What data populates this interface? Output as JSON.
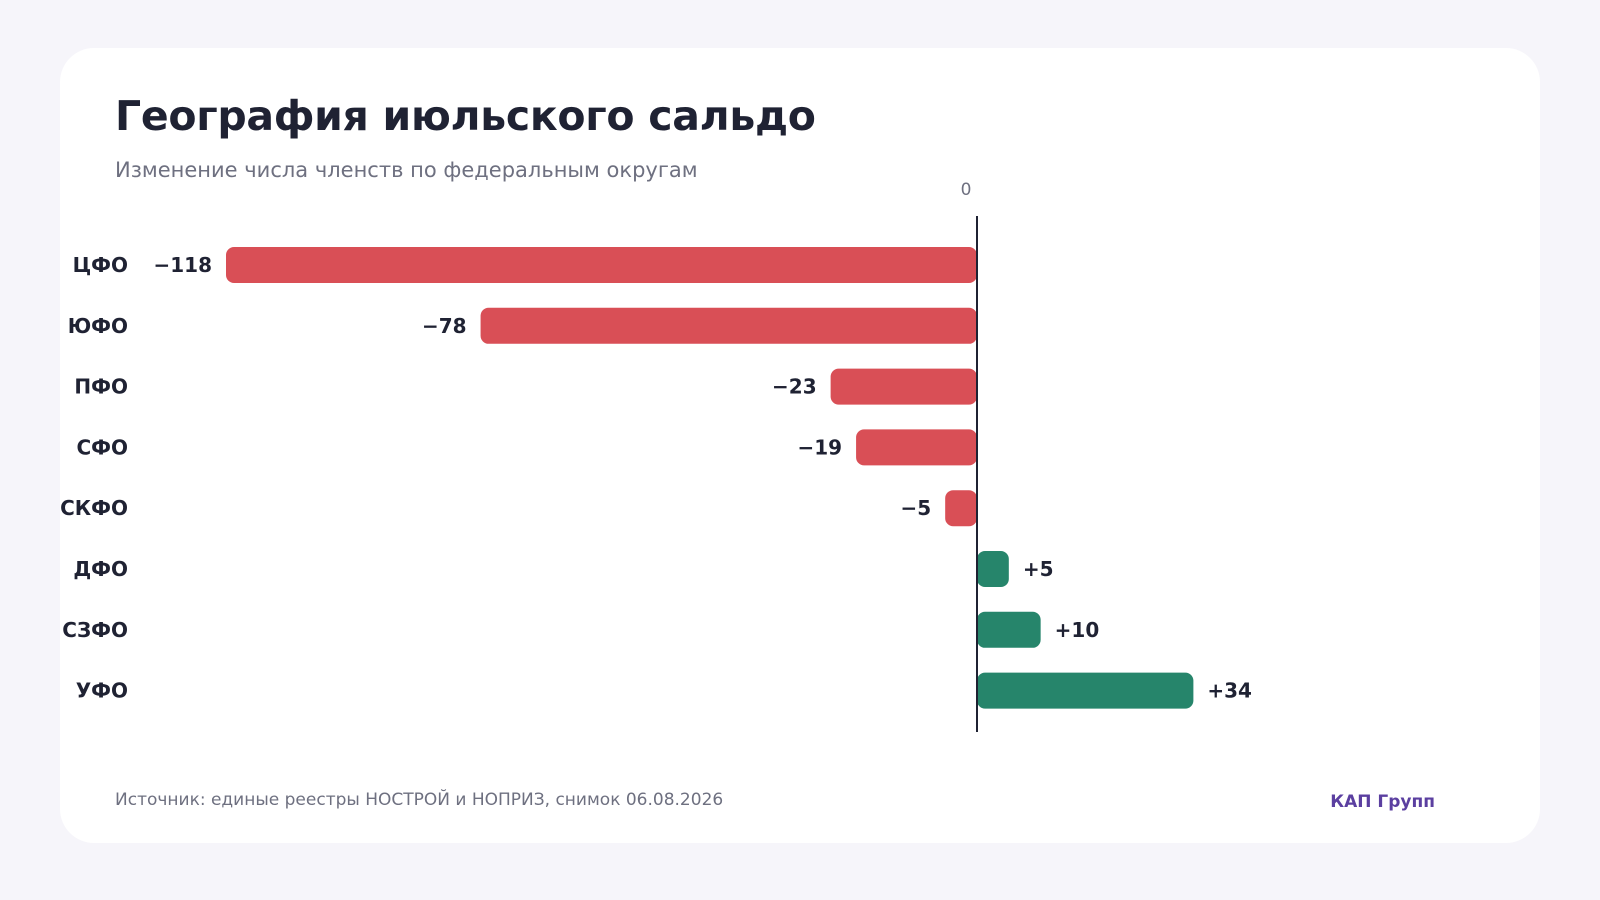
{
  "header": {
    "title": "География июльского сальдо",
    "subtitle": "Изменение числа членств по федеральным округам"
  },
  "footer": {
    "source": "Источник: единые реестры НОСТРОЙ и НОПРИЗ, снимок 06.08.2026",
    "brand": "КАП Групп"
  },
  "colors": {
    "negative": "#d94f56",
    "positive": "#26856b",
    "brand": "#5b3fa0",
    "axis": "#1f2233"
  },
  "chart_data": {
    "type": "bar",
    "orientation": "horizontal",
    "categories": [
      "ЦФО",
      "ЮФО",
      "ПФО",
      "СФО",
      "СКФО",
      "ДФО",
      "СЗФО",
      "УФО"
    ],
    "values": [
      -118,
      -78,
      -23,
      -19,
      -5,
      5,
      10,
      34
    ],
    "value_labels": [
      "−118",
      "−78",
      "−23",
      "−19",
      "−5",
      "+5",
      "+10",
      "+34"
    ],
    "zero_tick_label": "0",
    "title": "География июльского сальдо",
    "subtitle": "Изменение числа членств по федеральным округам",
    "xlim": [
      -118,
      34
    ],
    "grid": false,
    "legend": "none"
  }
}
